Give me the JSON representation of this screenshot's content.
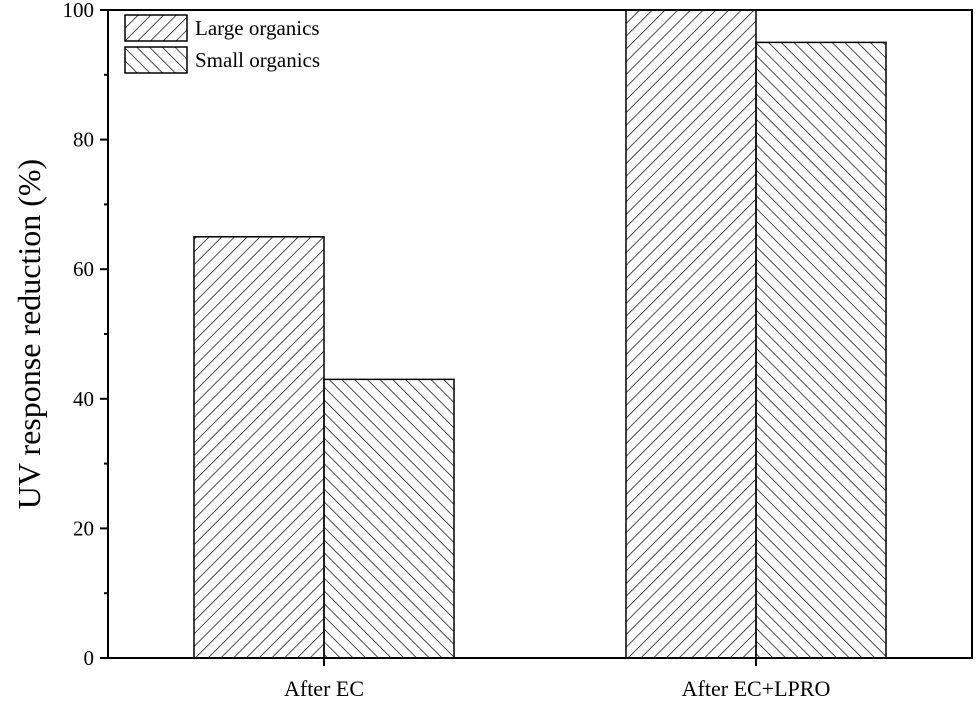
{
  "chart_data": {
    "type": "bar",
    "title": "",
    "xlabel": "",
    "ylabel": "UV response reduction (%)",
    "categories": [
      "After EC",
      "After EC+LPRO"
    ],
    "series": [
      {
        "name": "Large organics",
        "values": [
          65,
          100
        ],
        "pattern": "hatch-forward"
      },
      {
        "name": "Small organics",
        "values": [
          43,
          95
        ],
        "pattern": "hatch-backward"
      }
    ],
    "ylim": [
      0,
      100
    ],
    "yticks": [
      0,
      20,
      40,
      60,
      80,
      100
    ],
    "grid": false,
    "legend_position": "top-left",
    "colors": {
      "bar_fill": "#ffffff",
      "stroke": "#000000"
    }
  }
}
